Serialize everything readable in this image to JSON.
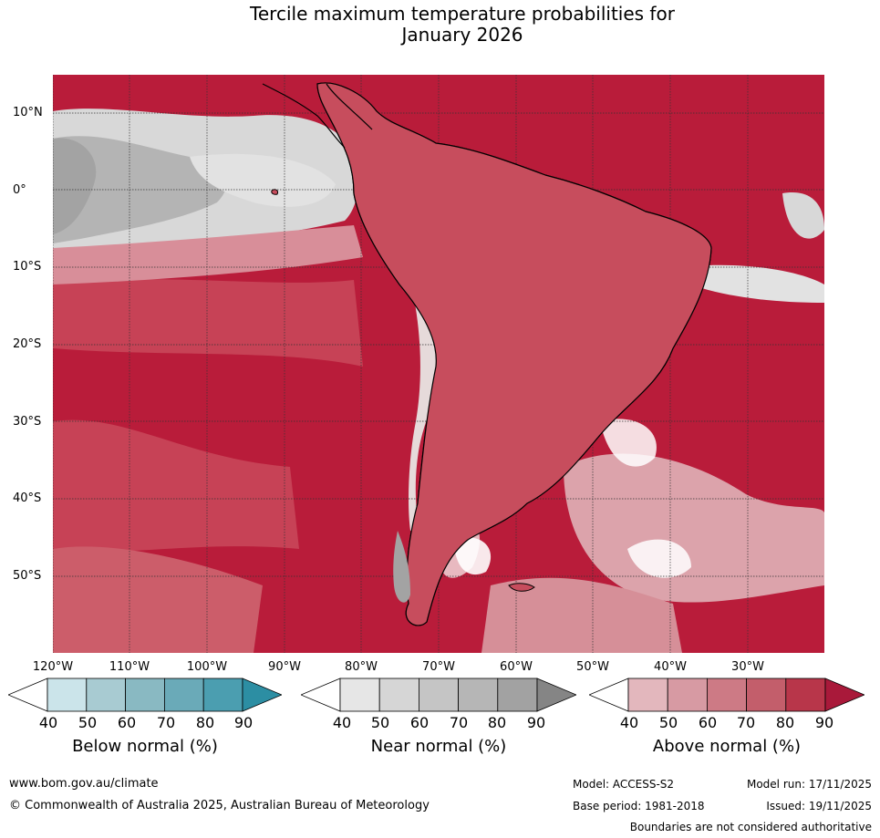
{
  "title_line1": "Tercile maximum temperature probabilities for",
  "title_line2": "January 2026",
  "lat_labels": [
    "10°N",
    "0°",
    "10°S",
    "20°S",
    "30°S",
    "40°S",
    "50°S"
  ],
  "lon_labels": [
    "120°W",
    "110°W",
    "100°W",
    "90°W",
    "80°W",
    "70°W",
    "60°W",
    "50°W",
    "40°W",
    "30°W"
  ],
  "colorbars": [
    {
      "title": "Below normal (%)",
      "ticks": [
        "40",
        "50",
        "60",
        "70",
        "80",
        "90"
      ],
      "colors": [
        "#ffffff",
        "#cbe4ea",
        "#a8cbd2",
        "#89b9c2",
        "#6aaab8",
        "#4b9eb0",
        "#2c8ea3"
      ]
    },
    {
      "title": "Near normal (%)",
      "ticks": [
        "40",
        "50",
        "60",
        "70",
        "80",
        "90"
      ],
      "colors": [
        "#ffffff",
        "#e6e6e6",
        "#d6d6d6",
        "#c5c5c5",
        "#b6b6b6",
        "#a2a2a2",
        "#858585"
      ]
    },
    {
      "title": "Above normal (%)",
      "ticks": [
        "40",
        "50",
        "60",
        "70",
        "80",
        "90"
      ],
      "colors": [
        "#ffffff",
        "#e3b7bd",
        "#d79aa3",
        "#cd7a85",
        "#c35e6b",
        "#b8364a",
        "#a9193a"
      ]
    }
  ],
  "footer": {
    "website": "www.bom.gov.au/climate",
    "copyright": "© Commonwealth of Australia 2025, Australian Bureau of Meteorology",
    "model": "Model: ACCESS-S2",
    "model_run": "Model run: 17/11/2025",
    "base_period": "Base period: 1981-2018",
    "issued": "Issued: 19/11/2025",
    "disclaimer": "Boundaries are not considered authoritative"
  },
  "colors": {
    "ocean_red": "#b91c3a",
    "land_red": "#c74d5d",
    "grey_mid": "#a3a3a3",
    "grey_light": "#d8d8d8",
    "pink": "#dda5ad"
  }
}
